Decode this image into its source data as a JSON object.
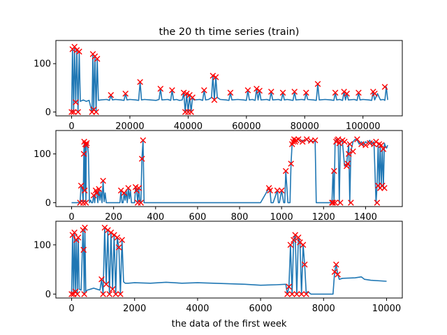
{
  "chart_data": [
    {
      "type": "line",
      "title": "the 20 th time series (train)",
      "xlabel": "",
      "ylabel": "",
      "xlim": [
        -5400,
        113500
      ],
      "ylim": [
        -8,
        148
      ],
      "xticks": [
        0,
        20000,
        40000,
        60000,
        80000,
        100000
      ],
      "yticks": [
        0,
        100
      ],
      "grid": false,
      "series": [
        {
          "x": [
            0,
            300,
            700,
            1000,
            1400,
            1800,
            2200,
            2600,
            3000,
            4000,
            5000,
            6000,
            7000,
            7300,
            7600,
            8000,
            8400,
            8800,
            9200,
            10000,
            12000,
            13000,
            13500,
            14000,
            15000,
            17000,
            18000,
            18500,
            19000,
            20000,
            22000,
            23000,
            23500,
            24000,
            25000,
            27000,
            29000,
            30000,
            30500,
            31000,
            33000,
            34000,
            34500,
            35000,
            36000,
            37000,
            38000,
            38500,
            39000,
            39500,
            40000,
            40500,
            41000,
            41500,
            42000,
            44000,
            45000,
            45500,
            46000,
            47000,
            48000,
            48500,
            49000,
            49500,
            50000,
            51000,
            53000,
            54000,
            54500,
            55000,
            57000,
            59000,
            60000,
            60500,
            61000,
            62000,
            63000,
            63500,
            64000,
            64500,
            65000,
            67000,
            68000,
            68500,
            69000,
            71000,
            72000,
            72500,
            73000,
            74000,
            76000,
            76500,
            77000,
            79000,
            80000,
            80500,
            81000,
            83000,
            84000,
            84500,
            85000,
            87000,
            89000,
            90000,
            90500,
            91000,
            92000,
            93000,
            93500,
            94000,
            94500,
            95000,
            97000,
            98000,
            98500,
            99000,
            100000,
            102000,
            103000,
            103500,
            104000,
            105000,
            106000,
            107000,
            107500,
            108000,
            108500
          ],
          "y": [
            0,
            130,
            0,
            135,
            20,
            128,
            0,
            125,
            22,
            25,
            22,
            24,
            0,
            120,
            5,
            115,
            0,
            110,
            24,
            25,
            26,
            24,
            35,
            25,
            26,
            25,
            24,
            38,
            25,
            26,
            25,
            24,
            62,
            25,
            26,
            25,
            24,
            26,
            48,
            25,
            26,
            24,
            45,
            25,
            26,
            24,
            25,
            40,
            0,
            38,
            0,
            35,
            0,
            30,
            25,
            26,
            24,
            45,
            25,
            26,
            30,
            75,
            25,
            72,
            30,
            26,
            25,
            24,
            40,
            25,
            26,
            25,
            24,
            45,
            25,
            26,
            24,
            48,
            25,
            44,
            25,
            26,
            24,
            42,
            25,
            26,
            24,
            40,
            25,
            26,
            24,
            42,
            25,
            26,
            25,
            40,
            26,
            25,
            24,
            58,
            25,
            26,
            25,
            24,
            40,
            25,
            26,
            24,
            42,
            25,
            38,
            25,
            26,
            24,
            40,
            25,
            26,
            25,
            24,
            42,
            25,
            38,
            25,
            26,
            24,
            52,
            25
          ]
        }
      ],
      "markers_x": [
        0,
        300,
        700,
        1000,
        1400,
        1800,
        2200,
        2600,
        7000,
        7300,
        7600,
        8000,
        8400,
        8800,
        13500,
        18500,
        23500,
        30500,
        34500,
        38500,
        39000,
        39500,
        40000,
        40500,
        41000,
        41500,
        45500,
        48500,
        49000,
        49500,
        54500,
        60500,
        63500,
        64500,
        68500,
        72500,
        76500,
        80500,
        84500,
        90500,
        93500,
        94500,
        98500,
        103500,
        104000,
        107500
      ],
      "markers_y": [
        0,
        130,
        0,
        135,
        20,
        128,
        0,
        125,
        0,
        120,
        5,
        115,
        0,
        110,
        35,
        38,
        62,
        48,
        45,
        40,
        0,
        38,
        0,
        35,
        0,
        30,
        45,
        75,
        25,
        72,
        40,
        45,
        48,
        44,
        42,
        40,
        42,
        40,
        58,
        40,
        42,
        38,
        40,
        42,
        38,
        52
      ]
    },
    {
      "type": "line",
      "title": "",
      "xlabel": "",
      "ylabel": "",
      "xlim": [
        -75,
        1575
      ],
      "ylim": [
        -8,
        148
      ],
      "xticks": [
        0,
        200,
        400,
        600,
        800,
        1000,
        1200,
        1400
      ],
      "yticks": [
        0,
        100
      ],
      "grid": false,
      "series": [
        {
          "x": [
            0,
            40,
            45,
            50,
            55,
            58,
            60,
            62,
            65,
            68,
            70,
            72,
            75,
            80,
            85,
            90,
            95,
            100,
            105,
            110,
            115,
            120,
            125,
            130,
            135,
            140,
            145,
            150,
            155,
            160,
            165,
            170,
            175,
            180,
            185,
            190,
            195,
            200,
            210,
            220,
            230,
            235,
            240,
            245,
            250,
            255,
            260,
            265,
            270,
            275,
            280,
            285,
            290,
            300,
            305,
            310,
            315,
            320,
            325,
            330,
            335,
            340,
            345,
            350,
            400,
            500,
            600,
            700,
            800,
            900,
            940,
            945,
            950,
            960,
            980,
            985,
            990,
            1000,
            1010,
            1015,
            1020,
            1030,
            1040,
            1045,
            1050,
            1055,
            1060,
            1065,
            1070,
            1080,
            1090,
            1100,
            1110,
            1120,
            1130,
            1140,
            1150,
            1160,
            1165,
            1170,
            1200,
            1230,
            1240,
            1245,
            1250,
            1255,
            1260,
            1265,
            1270,
            1275,
            1280,
            1290,
            1300,
            1310,
            1315,
            1320,
            1325,
            1330,
            1340,
            1350,
            1360,
            1370,
            1380,
            1390,
            1400,
            1410,
            1420,
            1430,
            1440,
            1450,
            1455,
            1460,
            1465,
            1470,
            1475,
            1480,
            1485,
            1490,
            1495,
            1500,
            1505
          ],
          "y": [
            0,
            0,
            35,
            30,
            0,
            100,
            125,
            25,
            120,
            0,
            118,
            122,
            120,
            100,
            0,
            5,
            0,
            0,
            15,
            0,
            25,
            20,
            0,
            28,
            5,
            25,
            0,
            45,
            2,
            20,
            0,
            0,
            0,
            0,
            0,
            0,
            0,
            0,
            0,
            0,
            0,
            25,
            0,
            0,
            20,
            5,
            25,
            0,
            30,
            8,
            25,
            0,
            0,
            0,
            32,
            25,
            0,
            30,
            0,
            0,
            90,
            128,
            0,
            0,
            0,
            0,
            0,
            0,
            0,
            0,
            30,
            25,
            0,
            0,
            25,
            0,
            0,
            25,
            0,
            0,
            65,
            0,
            0,
            80,
            120,
            125,
            130,
            125,
            128,
            130,
            125,
            128,
            126,
            130,
            125,
            127,
            125,
            128,
            0,
            0,
            0,
            0,
            0,
            65,
            0,
            125,
            128,
            130,
            122,
            0,
            128,
            125,
            75,
            80,
            100,
            120,
            0,
            105,
            125,
            130,
            128,
            120,
            125,
            118,
            125,
            122,
            128,
            120,
            125,
            0,
            35,
            120,
            30,
            118,
            35,
            110,
            30,
            122,
            115,
            112,
            118
          ]
        }
      ],
      "markers_x": [
        40,
        45,
        55,
        58,
        60,
        62,
        65,
        68,
        70,
        72,
        105,
        115,
        120,
        130,
        150,
        235,
        250,
        270,
        305,
        310,
        315,
        320,
        330,
        335,
        340,
        940,
        945,
        980,
        1000,
        1020,
        1045,
        1050,
        1055,
        1060,
        1065,
        1070,
        1080,
        1100,
        1120,
        1140,
        1160,
        1240,
        1245,
        1250,
        1255,
        1260,
        1265,
        1270,
        1275,
        1280,
        1290,
        1300,
        1310,
        1315,
        1320,
        1325,
        1330,
        1340,
        1360,
        1380,
        1400,
        1420,
        1440,
        1450,
        1455,
        1460,
        1465,
        1470,
        1475,
        1480,
        1485,
        1490
      ],
      "markers_y": [
        0,
        35,
        0,
        100,
        125,
        25,
        120,
        0,
        118,
        122,
        15,
        25,
        20,
        28,
        45,
        25,
        20,
        30,
        32,
        25,
        0,
        30,
        0,
        90,
        128,
        30,
        25,
        25,
        25,
        65,
        80,
        120,
        125,
        130,
        125,
        128,
        130,
        125,
        130,
        127,
        128,
        0,
        0,
        65,
        0,
        125,
        128,
        130,
        122,
        0,
        128,
        125,
        75,
        80,
        100,
        120,
        0,
        105,
        130,
        120,
        118,
        122,
        120,
        125,
        0,
        35,
        120,
        30,
        118,
        35,
        110,
        30
      ]
    },
    {
      "type": "line",
      "title": "",
      "xlabel": "the data of the first week",
      "ylabel": "",
      "xlim": [
        -500,
        10500
      ],
      "ylim": [
        -8,
        148
      ],
      "xticks": [
        0,
        2000,
        4000,
        6000,
        8000,
        10000
      ],
      "yticks": [
        0,
        100
      ],
      "grid": false,
      "series": [
        {
          "x": [
            0,
            30,
            60,
            90,
            120,
            150,
            180,
            210,
            240,
            300,
            360,
            380,
            400,
            420,
            450,
            500,
            600,
            700,
            800,
            900,
            950,
            1000,
            1050,
            1100,
            1150,
            1200,
            1250,
            1300,
            1350,
            1400,
            1450,
            1500,
            1550,
            1600,
            1650,
            1700,
            1800,
            2000,
            2500,
            3000,
            3500,
            4000,
            4500,
            5000,
            5500,
            6000,
            6500,
            6800,
            6850,
            6900,
            6950,
            7000,
            7050,
            7100,
            7150,
            7200,
            7250,
            7300,
            7350,
            7400,
            7450,
            7500,
            7600,
            7800,
            8000,
            8200,
            8300,
            8350,
            8400,
            8450,
            8500,
            8600,
            9000,
            9200,
            9300,
            9500,
            10000
          ],
          "y": [
            0,
            120,
            0,
            125,
            5,
            110,
            0,
            115,
            10,
            8,
            130,
            90,
            0,
            135,
            5,
            8,
            10,
            12,
            10,
            8,
            30,
            0,
            135,
            20,
            130,
            0,
            125,
            10,
            120,
            0,
            115,
            95,
            0,
            110,
            25,
            22,
            22,
            23,
            22,
            24,
            22,
            23,
            22,
            21,
            20,
            18,
            19,
            20,
            0,
            15,
            100,
            0,
            110,
            120,
            0,
            115,
            105,
            0,
            100,
            60,
            0,
            5,
            0,
            0,
            0,
            0,
            0,
            45,
            60,
            40,
            30,
            32,
            33,
            35,
            30,
            28,
            26
          ]
        }
      ],
      "markers_x": [
        0,
        30,
        60,
        90,
        120,
        150,
        180,
        210,
        360,
        380,
        400,
        420,
        950,
        1000,
        1050,
        1100,
        1150,
        1200,
        1250,
        1300,
        1350,
        1400,
        1450,
        1500,
        1550,
        1600,
        6850,
        6900,
        6950,
        7000,
        7050,
        7100,
        7150,
        7200,
        7250,
        7300,
        7350,
        7400,
        7450,
        8350,
        8400,
        8450
      ],
      "markers_y": [
        0,
        120,
        0,
        125,
        5,
        110,
        0,
        115,
        130,
        90,
        0,
        135,
        30,
        0,
        135,
        20,
        130,
        0,
        125,
        10,
        120,
        0,
        115,
        95,
        0,
        110,
        0,
        15,
        100,
        0,
        110,
        120,
        0,
        115,
        105,
        0,
        100,
        60,
        0,
        45,
        60,
        40
      ]
    }
  ]
}
